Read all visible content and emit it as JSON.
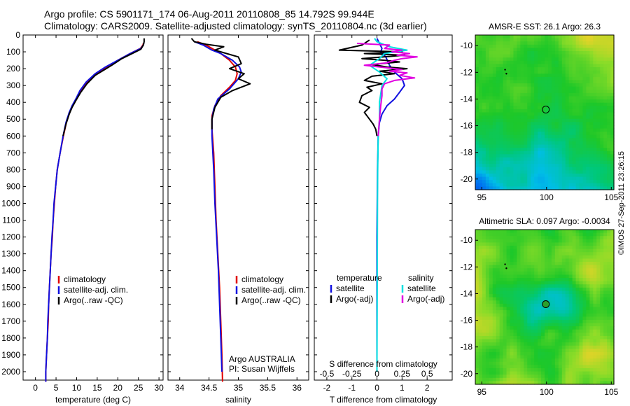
{
  "header": {
    "line1": "Argo profile: CS 5901171_174 06-Aug-2011 20110808_85 14.792S 99.944E",
    "line2": "Climatology: CARS2009. Satellite-adjusted climatology: synTS_20110804.nc (3d earlier)"
  },
  "stamp": "©IMOS 27-Sep-2011 23:26:15",
  "depth_ticks": [
    "0",
    "100",
    "200",
    "300",
    "400",
    "500",
    "600",
    "700",
    "800",
    "900",
    "1000",
    "1100",
    "1200",
    "1300",
    "1400",
    "1500",
    "1600",
    "1700",
    "1800",
    "1900",
    "2000"
  ],
  "colors": {
    "climatology": "#e00000",
    "satellite": "#1010e0",
    "argo": "#000000",
    "salinity_sat": "#00e0e0",
    "salinity_argo": "#e000e0"
  },
  "chart_data": [
    {
      "type": "line",
      "id": "temperature",
      "xlabel": "temperature (deg C)",
      "ylabel": "",
      "xlim": [
        -3,
        31
      ],
      "ylim": [
        2050,
        0
      ],
      "x_ticks": [
        "0",
        "5",
        "10",
        "15",
        "20",
        "25",
        "30"
      ],
      "legend": {
        "placement": "bottom-left",
        "entries": [
          "climatology",
          "satellite-adj. clim.",
          "Argo(..raw -QC)"
        ]
      },
      "series": [
        {
          "name": "climatology",
          "color": "#e00000",
          "points": [
            [
              26.2,
              50
            ],
            [
              26.1,
              60
            ],
            [
              25.5,
              80
            ],
            [
              23,
              110
            ],
            [
              20,
              150
            ],
            [
              17.5,
              190
            ],
            [
              15,
              230
            ],
            [
              12.5,
              280
            ],
            [
              11,
              330
            ],
            [
              10,
              380
            ],
            [
              9,
              420
            ],
            [
              8.3,
              460
            ],
            [
              7.5,
              520
            ],
            [
              6.8,
              600
            ],
            [
              6,
              700
            ],
            [
              5.3,
              800
            ],
            [
              4.9,
              900
            ],
            [
              4.6,
              1000
            ],
            [
              4.3,
              1100
            ],
            [
              4.1,
              1200
            ],
            [
              3.8,
              1300
            ],
            [
              3.6,
              1400
            ],
            [
              3.4,
              1500
            ],
            [
              3.2,
              1600
            ],
            [
              3.1,
              1700
            ],
            [
              2.9,
              1800
            ],
            [
              2.7,
              1900
            ],
            [
              2.5,
              2000
            ],
            [
              2.5,
              2060
            ]
          ]
        },
        {
          "name": "satellite-adj. clim.",
          "color": "#1010e0",
          "points": [
            [
              26.3,
              50
            ],
            [
              26.2,
              60
            ],
            [
              25.6,
              80
            ],
            [
              23,
              110
            ],
            [
              20,
              150
            ],
            [
              17,
              190
            ],
            [
              14.5,
              230
            ],
            [
              12.3,
              280
            ],
            [
              10.8,
              330
            ],
            [
              9.8,
              380
            ],
            [
              8.9,
              420
            ],
            [
              8.2,
              460
            ],
            [
              7.4,
              520
            ],
            [
              6.7,
              600
            ],
            [
              6,
              700
            ],
            [
              5.3,
              800
            ],
            [
              4.9,
              900
            ],
            [
              4.5,
              1000
            ],
            [
              4.3,
              1100
            ],
            [
              4,
              1200
            ],
            [
              3.8,
              1300
            ],
            [
              3.6,
              1400
            ],
            [
              3.4,
              1500
            ],
            [
              3.2,
              1600
            ],
            [
              3,
              1700
            ],
            [
              2.9,
              1800
            ],
            [
              2.7,
              1900
            ],
            [
              2.5,
              2000
            ],
            [
              2.5,
              2060
            ]
          ]
        },
        {
          "name": "Argo(..raw -QC)",
          "color": "#000000",
          "points": [
            [
              26.4,
              20
            ],
            [
              26.4,
              40
            ],
            [
              26.2,
              60
            ],
            [
              25.6,
              85
            ],
            [
              23.5,
              110
            ],
            [
              21,
              140
            ],
            [
              18.5,
              180
            ],
            [
              16.5,
              210
            ],
            [
              14.5,
              240
            ],
            [
              12.5,
              290
            ],
            [
              11,
              340
            ],
            [
              9.8,
              390
            ],
            [
              8.9,
              430
            ],
            [
              8.2,
              470
            ],
            [
              7.4,
              530
            ],
            [
              6.7,
              600
            ]
          ]
        }
      ]
    },
    {
      "type": "line",
      "id": "salinity",
      "xlabel": "salinity",
      "ylabel": "",
      "xlim": [
        33.8,
        36.2
      ],
      "ylim": [
        2050,
        0
      ],
      "x_ticks": [
        "34",
        "34.5",
        "35",
        "35.5",
        "36"
      ],
      "legend": {
        "placement": "bottom-right",
        "entries": [
          "climatology",
          "satellite-adj. clim.",
          "Argo(..raw -QC)"
        ]
      },
      "annotation": [
        "Argo AUSTRALIA",
        "PI: Susan Wijffels"
      ],
      "series": [
        {
          "name": "climatology",
          "color": "#e00000",
          "points": [
            [
              34.3,
              40
            ],
            [
              34.45,
              60
            ],
            [
              34.6,
              90
            ],
            [
              34.7,
              110
            ],
            [
              34.85,
              150
            ],
            [
              34.95,
              190
            ],
            [
              34.98,
              230
            ],
            [
              34.95,
              270
            ],
            [
              34.85,
              310
            ],
            [
              34.7,
              360
            ],
            [
              34.6,
              420
            ],
            [
              34.55,
              480
            ],
            [
              34.55,
              560
            ],
            [
              34.58,
              700
            ],
            [
              34.6,
              900
            ],
            [
              34.62,
              1100
            ],
            [
              34.65,
              1300
            ],
            [
              34.68,
              1500
            ],
            [
              34.7,
              1700
            ],
            [
              34.72,
              1900
            ],
            [
              34.73,
              2060
            ]
          ]
        },
        {
          "name": "satellite-adj. clim.",
          "color": "#1010e0",
          "points": [
            [
              34.25,
              40
            ],
            [
              34.4,
              60
            ],
            [
              34.55,
              90
            ],
            [
              34.7,
              110
            ],
            [
              34.9,
              150
            ],
            [
              35.02,
              190
            ],
            [
              35.05,
              220
            ],
            [
              35.0,
              260
            ],
            [
              34.85,
              320
            ],
            [
              34.65,
              380
            ],
            [
              34.58,
              440
            ],
            [
              34.55,
              500
            ],
            [
              34.55,
              600
            ],
            [
              34.58,
              800
            ],
            [
              34.6,
              1000
            ],
            [
              34.63,
              1200
            ],
            [
              34.66,
              1400
            ],
            [
              34.68,
              1600
            ],
            [
              34.7,
              1800
            ],
            [
              34.72,
              2000
            ]
          ]
        },
        {
          "name": "Argo(..raw -QC)",
          "color": "#000000",
          "points": [
            [
              34.2,
              20
            ],
            [
              34.25,
              40
            ],
            [
              34.45,
              55
            ],
            [
              34.75,
              70
            ],
            [
              34.6,
              90
            ],
            [
              34.8,
              110
            ],
            [
              35.0,
              130
            ],
            [
              35.05,
              170
            ],
            [
              34.85,
              200
            ],
            [
              35.1,
              230
            ],
            [
              35.0,
              260
            ],
            [
              35.2,
              290
            ],
            [
              34.9,
              330
            ],
            [
              34.7,
              370
            ],
            [
              34.6,
              430
            ],
            [
              34.55,
              500
            ],
            [
              34.55,
              560
            ]
          ]
        }
      ]
    },
    {
      "type": "line",
      "id": "difference",
      "xlabel": "T difference from climatology",
      "x2label": "S difference from climatology",
      "ylabel": "",
      "xlim": [
        -2.5,
        3
      ],
      "ylim": [
        2050,
        0
      ],
      "x_ticks": [
        "-2",
        "-1",
        "0",
        "1",
        "2"
      ],
      "s_ticks": [
        "-0.5",
        "-0.25",
        "0",
        "0.25",
        "0.5"
      ],
      "legend": {
        "placement": "bottom",
        "temperature_title": "temperature",
        "salinity_title": "salinity",
        "temperature_entries": [
          "satellite",
          "Argo(-adj)"
        ],
        "salinity_entries": [
          "satellite",
          "Argo(-adj)"
        ]
      },
      "series": [
        {
          "name": "T satellite",
          "color": "#1010e0",
          "points": [
            [
              0,
              20
            ],
            [
              0.1,
              50
            ],
            [
              0.2,
              80
            ],
            [
              0.15,
              100
            ],
            [
              0.35,
              130
            ],
            [
              0.5,
              180
            ],
            [
              0.7,
              220
            ],
            [
              1.0,
              260
            ],
            [
              1.1,
              300
            ],
            [
              0.9,
              340
            ],
            [
              0.7,
              380
            ],
            [
              0.4,
              420
            ],
            [
              0.2,
              470
            ],
            [
              0.1,
              520
            ],
            [
              0.05,
              600
            ],
            [
              0.02,
              800
            ],
            [
              0,
              1200
            ],
            [
              0,
              2000
            ]
          ]
        },
        {
          "name": "T Argo(-adj)",
          "color": "#000000",
          "points": [
            [
              -0.3,
              30
            ],
            [
              -0.6,
              60
            ],
            [
              -1.5,
              90
            ],
            [
              1.0,
              100
            ],
            [
              -0.5,
              110
            ],
            [
              1.1,
              120
            ],
            [
              -0.6,
              140
            ],
            [
              0.3,
              150
            ],
            [
              0.9,
              160
            ],
            [
              -0.2,
              175
            ],
            [
              0.4,
              190
            ],
            [
              1.2,
              200
            ],
            [
              0.1,
              215
            ],
            [
              0.7,
              230
            ],
            [
              -0.2,
              245
            ],
            [
              -0.5,
              270
            ],
            [
              0.2,
              290
            ],
            [
              -0.4,
              310
            ],
            [
              -0.2,
              330
            ],
            [
              -0.6,
              360
            ],
            [
              -0.7,
              400
            ],
            [
              -0.3,
              430
            ],
            [
              -0.5,
              460
            ],
            [
              -0.3,
              500
            ],
            [
              -0.15,
              530
            ],
            [
              -0.05,
              560
            ],
            [
              0,
              600
            ]
          ]
        },
        {
          "name": "S satellite",
          "color": "#00e0e0",
          "points": [
            [
              -0.1,
              20
            ],
            [
              0,
              40
            ],
            [
              0.5,
              70
            ],
            [
              1.2,
              90
            ],
            [
              0.3,
              110
            ],
            [
              0.1,
              140
            ],
            [
              -0.3,
              180
            ],
            [
              0.1,
              220
            ],
            [
              0.4,
              260
            ],
            [
              0.2,
              300
            ],
            [
              0.15,
              350
            ],
            [
              0.1,
              400
            ],
            [
              0.1,
              500
            ],
            [
              0.05,
              600
            ],
            [
              0.03,
              800
            ],
            [
              0.02,
              1000
            ],
            [
              0.01,
              1500
            ],
            [
              0,
              2000
            ]
          ]
        },
        {
          "name": "S Argo(-adj)",
          "color": "#e000e0",
          "points": [
            [
              -0.8,
              50
            ],
            [
              0.5,
              60
            ],
            [
              0.3,
              80
            ],
            [
              1.0,
              90
            ],
            [
              0.6,
              100
            ],
            [
              1.3,
              110
            ],
            [
              0.8,
              120
            ],
            [
              1.6,
              130
            ],
            [
              1.0,
              140
            ],
            [
              0.7,
              150
            ],
            [
              0.4,
              165
            ],
            [
              -0.5,
              180
            ],
            [
              0.4,
              195
            ],
            [
              1.0,
              205
            ],
            [
              0.5,
              215
            ],
            [
              1.2,
              225
            ],
            [
              0.9,
              240
            ],
            [
              1.5,
              255
            ],
            [
              0.7,
              270
            ],
            [
              0.3,
              290
            ],
            [
              0.2,
              320
            ],
            [
              0.2,
              360
            ],
            [
              0.15,
              420
            ],
            [
              0.1,
              500
            ],
            [
              0.05,
              600
            ]
          ]
        }
      ]
    },
    {
      "type": "heatmap",
      "id": "sst_map",
      "title": "AMSR-E SST: 26.1 Argo: 26.3",
      "xlim": [
        94.5,
        105.2
      ],
      "ylim": [
        -20.8,
        -9.2
      ],
      "x_ticks": [
        "95",
        "100",
        "105"
      ],
      "y_ticks": [
        "-10",
        "-12",
        "-14",
        "-16",
        "-18",
        "-20"
      ],
      "argo_position": [
        99.944,
        -14.792
      ],
      "track_points": [
        [
          96.8,
          -11.8
        ],
        [
          96.9,
          -12.1
        ]
      ]
    },
    {
      "type": "heatmap",
      "id": "sla_map",
      "title": "Altimetric SLA: 0.097 Argo: -0.0034",
      "xlim": [
        94.5,
        105.2
      ],
      "ylim": [
        -20.8,
        -9.2
      ],
      "x_ticks": [
        "95",
        "100",
        "105"
      ],
      "y_ticks": [
        "-10",
        "-12",
        "-14",
        "-16",
        "-18",
        "-20"
      ],
      "argo_position": [
        99.944,
        -14.792
      ],
      "track_points": [
        [
          96.8,
          -11.8
        ],
        [
          96.9,
          -12.1
        ]
      ]
    }
  ]
}
